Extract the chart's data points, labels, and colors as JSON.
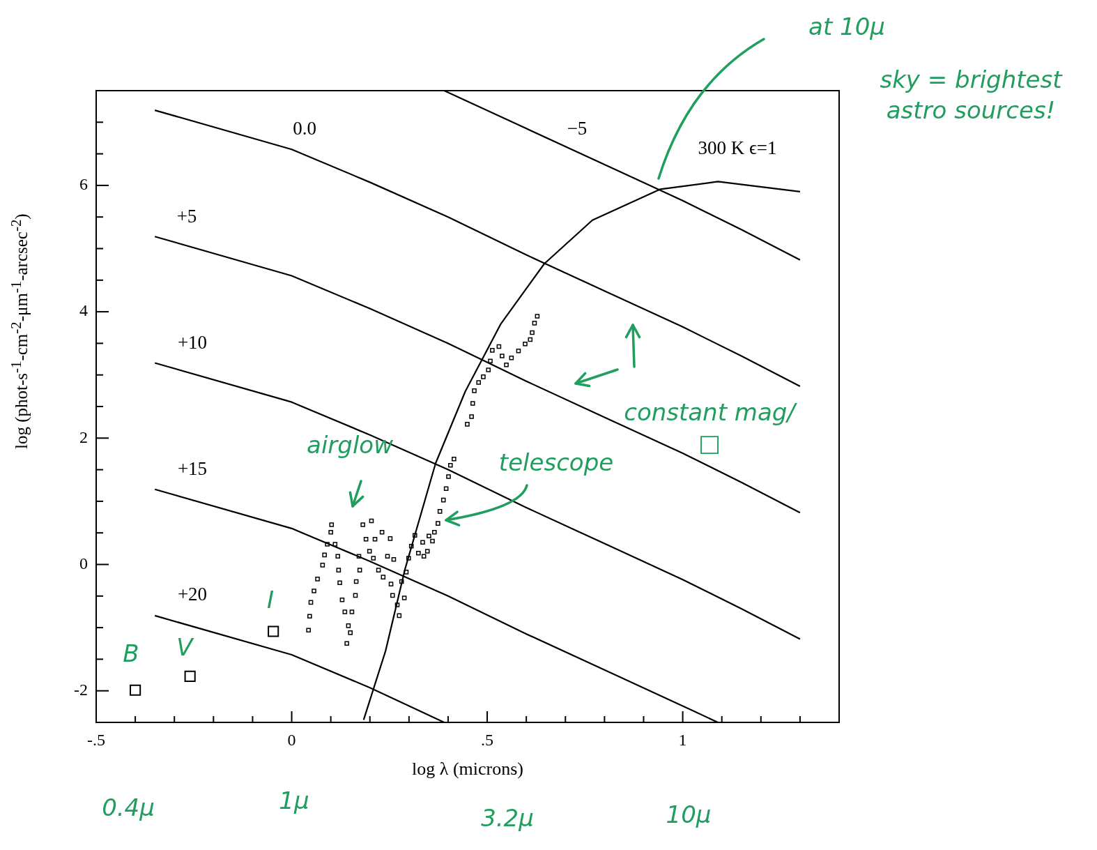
{
  "chart_data": {
    "type": "scatter",
    "xlabel": "log λ (microns)",
    "ylabel": "log (phot-s$^{-1}$-cm$^{-2}$-μm$^{-1}$-arcsec$^{-2}$)",
    "xlim": [
      -0.5,
      1.4
    ],
    "ylim": [
      -2.5,
      7.5
    ],
    "xticks": [
      {
        "value": -0.5,
        "label": "-.5"
      },
      {
        "value": -0.4,
        "label": null
      },
      {
        "value": -0.3,
        "label": null
      },
      {
        "value": -0.2,
        "label": null
      },
      {
        "value": -0.1,
        "label": null
      },
      0,
      {
        "value": 0.1,
        "label": null
      },
      {
        "value": 0.2,
        "label": null
      },
      {
        "value": 0.3,
        "label": null
      },
      {
        "value": 0.4,
        "label": null
      },
      {
        "value": 0.5,
        "label": ".5"
      },
      {
        "value": 0.6,
        "label": null
      },
      {
        "value": 0.7,
        "label": null
      },
      {
        "value": 0.8,
        "label": null
      },
      {
        "value": 0.9,
        "label": null
      },
      1,
      {
        "value": 1.1,
        "label": null
      },
      {
        "value": 1.2,
        "label": null
      },
      {
        "value": 1.3,
        "label": null
      }
    ],
    "yticks": [
      {
        "value": -2.5,
        "label": null
      },
      -2,
      {
        "value": -1.5,
        "label": null
      },
      {
        "value": -1,
        "label": null
      },
      {
        "value": -0.5,
        "label": null
      },
      0,
      {
        "value": 0.5,
        "label": null
      },
      {
        "value": 1,
        "label": null
      },
      {
        "value": 1.5,
        "label": null
      },
      2,
      {
        "value": 2.5,
        "label": null
      },
      {
        "value": 3,
        "label": null
      },
      {
        "value": 3.5,
        "label": null
      },
      4,
      {
        "value": 4.5,
        "label": null
      },
      {
        "value": 5,
        "label": null
      },
      {
        "value": 5.5,
        "label": null
      },
      6,
      {
        "value": 6.5,
        "label": null
      },
      {
        "value": 7,
        "label": null
      },
      {
        "value": 7.5,
        "label": null
      }
    ],
    "series": [
      {
        "type": "line",
        "color": "#000000",
        "marker": "none",
        "x": [
          0.39,
          0.6,
          0.8,
          1.0,
          1.15,
          1.3
        ],
        "values": [
          7.5,
          6.9,
          6.33,
          5.76,
          5.3,
          4.82
        ]
      },
      {
        "type": "line",
        "color": "#000000",
        "marker": "none",
        "x": [
          -0.35,
          0,
          0.2,
          0.4,
          0.6,
          0.8,
          1.0,
          1.15,
          1.3
        ],
        "values": [
          7.19,
          6.57,
          6.05,
          5.5,
          4.9,
          4.33,
          3.76,
          3.3,
          2.82
        ]
      },
      {
        "type": "line",
        "color": "#000000",
        "marker": "none",
        "x": [
          -0.35,
          0,
          0.2,
          0.4,
          0.6,
          0.8,
          1.0,
          1.15,
          1.3
        ],
        "values": [
          5.19,
          4.57,
          4.05,
          3.5,
          2.9,
          2.33,
          1.76,
          1.3,
          0.82
        ]
      },
      {
        "type": "line",
        "color": "#000000",
        "marker": "none",
        "x": [
          -0.35,
          0,
          0.2,
          0.4,
          0.6,
          0.8,
          1.0,
          1.15,
          1.3
        ],
        "values": [
          3.19,
          2.57,
          2.05,
          1.5,
          0.9,
          0.33,
          -0.24,
          -0.7,
          -1.18
        ]
      },
      {
        "type": "line",
        "color": "#000000",
        "marker": "none",
        "x": [
          -0.35,
          0,
          0.2,
          0.4,
          0.6,
          0.8,
          1.0,
          1.09
        ],
        "values": [
          1.19,
          0.57,
          0.05,
          -0.5,
          -1.1,
          -1.67,
          -2.24,
          -2.5
        ]
      },
      {
        "type": "line",
        "color": "#000000",
        "marker": "none",
        "x": [
          -0.35,
          0,
          0.2,
          0.39
        ],
        "values": [
          -0.81,
          -1.43,
          -1.95,
          -2.5
        ]
      },
      {
        "type": "line",
        "color": "#000000",
        "marker": "none",
        "x": [
          0.184,
          0.24,
          0.29,
          0.368,
          0.444,
          0.535,
          0.646,
          0.769,
          0.943,
          1.09,
          1.3
        ],
        "values": [
          -2.46,
          -1.37,
          -0.07,
          1.6,
          2.74,
          3.81,
          4.76,
          5.45,
          5.94,
          6.06,
          5.9
        ]
      },
      {
        "type": "scatter",
        "color": "#000000",
        "marker": "square",
        "x": [
          0.043,
          0.046,
          0.049,
          0.057,
          0.066,
          0.079,
          0.084,
          0.091,
          0.1,
          0.102,
          0.111,
          0.118,
          0.12,
          0.123,
          0.129,
          0.136,
          0.145,
          0.141,
          0.15,
          0.154,
          0.163,
          0.165,
          0.174,
          0.172,
          0.182,
          0.204,
          0.19,
          0.199,
          0.213,
          0.231,
          0.209,
          0.222,
          0.234,
          0.252,
          0.245,
          0.261,
          0.254,
          0.258,
          0.27,
          0.275,
          0.288,
          0.281,
          0.293,
          0.299,
          0.306,
          0.315,
          0.324,
          0.335,
          0.338,
          0.347,
          0.351,
          0.36,
          0.365,
          0.374,
          0.379,
          0.388,
          0.395,
          0.401,
          0.406,
          0.415,
          0.449,
          0.46,
          0.463,
          0.467,
          0.478,
          0.49,
          0.503,
          0.508,
          0.513,
          0.53,
          0.538,
          0.549,
          0.562,
          0.58,
          0.597,
          0.61,
          0.615,
          0.621,
          0.628
        ],
        "values": [
          -1.04,
          -0.82,
          -0.6,
          -0.42,
          -0.23,
          -0.01,
          0.15,
          0.32,
          0.51,
          0.63,
          0.32,
          0.13,
          -0.09,
          -0.29,
          -0.56,
          -0.75,
          -0.97,
          -1.25,
          -1.08,
          -0.75,
          -0.49,
          -0.27,
          -0.09,
          0.13,
          0.63,
          0.69,
          0.4,
          0.21,
          0.4,
          0.51,
          0.1,
          -0.09,
          -0.2,
          0.41,
          0.13,
          0.08,
          -0.31,
          -0.49,
          -0.64,
          -0.81,
          -0.53,
          -0.27,
          -0.12,
          0.1,
          0.29,
          0.46,
          0.18,
          0.35,
          0.13,
          0.21,
          0.45,
          0.37,
          0.51,
          0.65,
          0.84,
          1.02,
          1.2,
          1.39,
          1.57,
          1.67,
          2.22,
          2.34,
          2.55,
          2.75,
          2.88,
          2.97,
          3.08,
          3.22,
          3.39,
          3.45,
          3.3,
          3.16,
          3.27,
          3.38,
          3.49,
          3.56,
          3.67,
          3.82,
          3.93
        ]
      },
      {
        "type": "scatter",
        "color": "#000000",
        "marker": "square",
        "x": [
          -0.4,
          -0.26,
          -0.047
        ],
        "values": [
          -1.99,
          -1.77,
          -1.06
        ]
      }
    ],
    "annotations": [
      "0.0",
      "−5",
      "+5",
      "+10",
      "+15",
      "+20",
      "300 K   ϵ=1",
      "airglow",
      "telescope",
      "constant mag/□",
      "B",
      "V",
      "I",
      "at 10μ",
      "sky = brightest astro sources!",
      "0.4μ",
      "1μ",
      "3.2μ",
      "10μ"
    ]
  }
}
